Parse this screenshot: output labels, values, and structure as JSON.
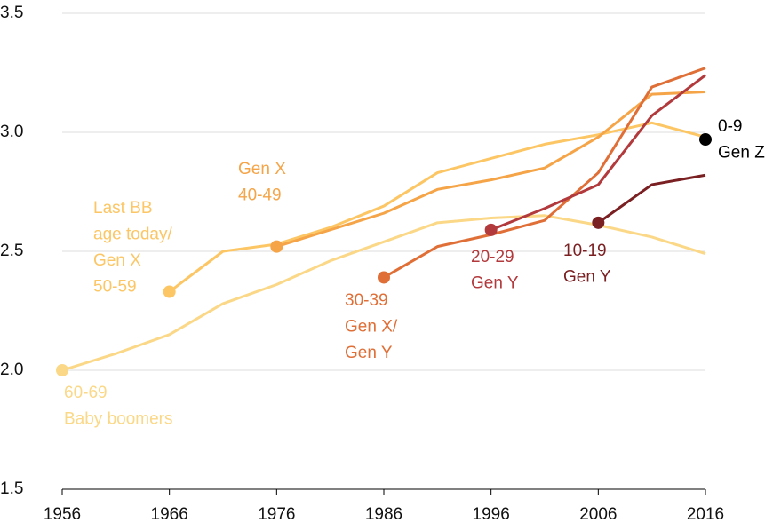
{
  "chart_data": {
    "type": "line",
    "x": [
      1956,
      1961,
      1966,
      1971,
      1976,
      1981,
      1986,
      1991,
      1996,
      2001,
      2006,
      2011,
      2016
    ],
    "series": [
      {
        "label": [
          "60-69",
          "Baby boomers"
        ],
        "color": "#fbd887",
        "values": [
          2.0,
          2.07,
          2.15,
          2.28,
          2.36,
          2.46,
          2.54,
          2.62,
          2.64,
          2.65,
          2.61,
          2.56,
          2.49
        ]
      },
      {
        "label": [
          "Last BB",
          "age today/",
          "Gen X",
          "50-59"
        ],
        "color": "#fcc665",
        "values": [
          null,
          null,
          2.33,
          2.5,
          2.53,
          2.6,
          2.69,
          2.83,
          2.89,
          2.95,
          2.99,
          3.04,
          2.98
        ]
      },
      {
        "label": [
          "Gen X",
          "40-49"
        ],
        "color": "#f5a447",
        "values": [
          null,
          null,
          null,
          null,
          2.52,
          2.59,
          2.66,
          2.76,
          2.8,
          2.85,
          2.98,
          3.16,
          3.17
        ]
      },
      {
        "label": [
          "30-39",
          "Gen X/",
          "Gen Y"
        ],
        "color": "#df6f37",
        "values": [
          null,
          null,
          null,
          null,
          null,
          null,
          2.39,
          2.52,
          2.57,
          2.63,
          2.83,
          3.19,
          3.27
        ]
      },
      {
        "label": [
          "20-29",
          "Gen Y"
        ],
        "color": "#b23a3d",
        "values": [
          null,
          null,
          null,
          null,
          null,
          null,
          null,
          null,
          2.59,
          2.68,
          2.78,
          3.07,
          3.24
        ]
      },
      {
        "label": [
          "10-19",
          "Gen Y"
        ],
        "color": "#7a1f22",
        "values": [
          null,
          null,
          null,
          null,
          null,
          null,
          null,
          null,
          null,
          null,
          2.62,
          2.78,
          2.82
        ]
      },
      {
        "label": [
          "0-9",
          "Gen Z"
        ],
        "color": "#000000",
        "values": [
          null,
          null,
          null,
          null,
          null,
          null,
          null,
          null,
          null,
          null,
          null,
          null,
          2.97
        ]
      }
    ],
    "xlim": [
      1956,
      2016
    ],
    "xticks": [
      1956,
      1966,
      1976,
      1986,
      1996,
      2006,
      2016
    ],
    "ylim": [
      1.5,
      3.5
    ],
    "yticks": [
      1.5,
      {
        "value": 2.0,
        "label": "2.0"
      },
      2.5,
      {
        "value": 3.0,
        "label": "3.0"
      },
      3.5
    ],
    "grid": true
  }
}
